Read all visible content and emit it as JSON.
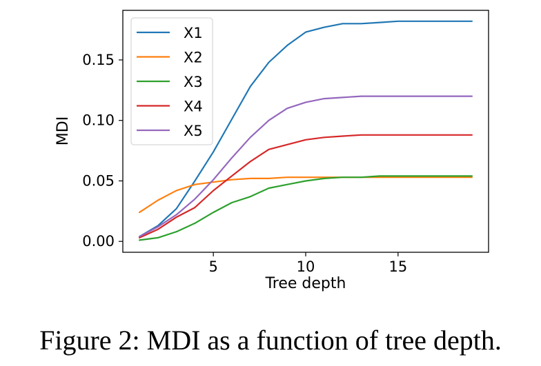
{
  "caption": "Figure 2: MDI as a function of tree depth.",
  "chart_data": {
    "type": "line",
    "title": "",
    "xlabel": "Tree depth",
    "ylabel": "MDI",
    "xlim": [
      0.1,
      19.9
    ],
    "ylim": [
      -0.009,
      0.191
    ],
    "xticks": [
      5,
      10,
      15
    ],
    "yticks": [
      0.0,
      0.05,
      0.1,
      0.15
    ],
    "ytick_labels": [
      "0.00",
      "0.05",
      "0.10",
      "0.15"
    ],
    "grid": false,
    "legend_position": "top-left",
    "x": [
      1,
      2,
      3,
      4,
      5,
      6,
      7,
      8,
      9,
      10,
      11,
      12,
      13,
      14,
      15,
      16,
      17,
      18,
      19
    ],
    "series": [
      {
        "name": "X1",
        "color": "#1f77b4",
        "values": [
          0.004,
          0.013,
          0.027,
          0.05,
          0.074,
          0.101,
          0.128,
          0.148,
          0.162,
          0.173,
          0.177,
          0.18,
          0.18,
          0.181,
          0.182,
          0.182,
          0.182,
          0.182,
          0.182
        ]
      },
      {
        "name": "X2",
        "color": "#ff7f0e",
        "values": [
          0.024,
          0.034,
          0.042,
          0.047,
          0.049,
          0.051,
          0.052,
          0.052,
          0.053,
          0.053,
          0.053,
          0.053,
          0.053,
          0.053,
          0.053,
          0.053,
          0.053,
          0.053,
          0.053
        ]
      },
      {
        "name": "X3",
        "color": "#2ca02c",
        "values": [
          0.001,
          0.003,
          0.008,
          0.015,
          0.024,
          0.032,
          0.037,
          0.044,
          0.047,
          0.05,
          0.052,
          0.053,
          0.053,
          0.054,
          0.054,
          0.054,
          0.054,
          0.054,
          0.054
        ]
      },
      {
        "name": "X4",
        "color": "#d62728",
        "values": [
          0.003,
          0.01,
          0.02,
          0.028,
          0.042,
          0.054,
          0.066,
          0.076,
          0.08,
          0.084,
          0.086,
          0.087,
          0.088,
          0.088,
          0.088,
          0.088,
          0.088,
          0.088,
          0.088
        ]
      },
      {
        "name": "X5",
        "color": "#9467bd",
        "values": [
          0.004,
          0.012,
          0.022,
          0.035,
          0.051,
          0.069,
          0.086,
          0.1,
          0.11,
          0.115,
          0.118,
          0.119,
          0.12,
          0.12,
          0.12,
          0.12,
          0.12,
          0.12,
          0.12
        ]
      }
    ]
  }
}
